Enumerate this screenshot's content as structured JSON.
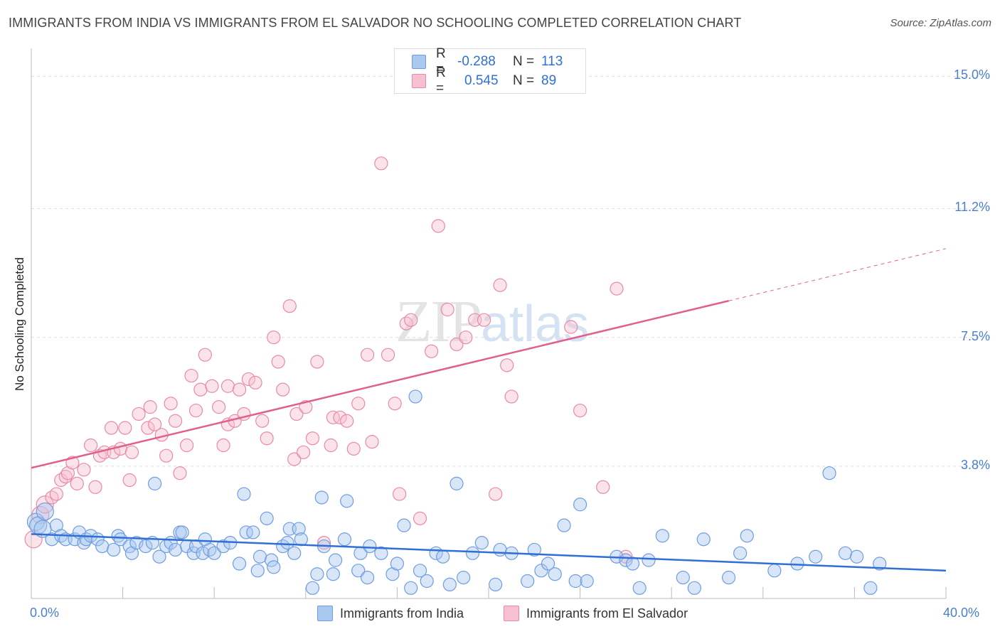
{
  "title": "IMMIGRANTS FROM INDIA VS IMMIGRANTS FROM EL SALVADOR NO SCHOOLING COMPLETED CORRELATION CHART",
  "source": "Source: ZipAtlas.com",
  "watermark": {
    "zip": "ZIP",
    "atlas": "atlas"
  },
  "legend": {
    "india": {
      "r_label": "R =",
      "r_value": "-0.288",
      "n_label": "N =",
      "n_value": "113"
    },
    "elsalvador": {
      "r_label": "R =",
      "r_value": "0.545",
      "n_label": "N =",
      "n_value": "89"
    }
  },
  "colors": {
    "india_fill": "#a9c8f0",
    "india_stroke": "#6f9de0",
    "india_line": "#2f6fd6",
    "elsalvador_fill": "#f6c0d0",
    "elsalvador_stroke": "#e88aa8",
    "elsalvador_line": "#e0608a",
    "value_text": "#2f6fd6",
    "grid": "#dddddd"
  },
  "chart_data": {
    "type": "scatter",
    "xlabel": "",
    "ylabel": "No Schooling Completed",
    "xlim": [
      0,
      40
    ],
    "ylim": [
      0,
      15.6
    ],
    "x_tick_labels": [
      {
        "value": 0,
        "label": "0.0%"
      },
      {
        "value": 40,
        "label": "40.0%"
      }
    ],
    "y_tick_labels": [
      {
        "value": 3.8,
        "label": "3.8%"
      },
      {
        "value": 7.5,
        "label": "7.5%"
      },
      {
        "value": 11.2,
        "label": "11.2%"
      },
      {
        "value": 15.0,
        "label": "15.0%"
      }
    ],
    "grid": true,
    "legend_position": "bottom",
    "series": [
      {
        "name": "Immigrants from India",
        "trend": {
          "x0": 0,
          "y0": 1.85,
          "x1": 40,
          "y1": 0.8
        },
        "points": [
          [
            0.2,
            2.2
          ],
          [
            0.3,
            2.1
          ],
          [
            0.5,
            2.0
          ],
          [
            0.6,
            2.5
          ],
          [
            0.9,
            1.7
          ],
          [
            1.1,
            2.1
          ],
          [
            1.3,
            1.8
          ],
          [
            1.5,
            1.7
          ],
          [
            1.9,
            1.7
          ],
          [
            2.1,
            1.9
          ],
          [
            2.3,
            1.6
          ],
          [
            2.4,
            1.7
          ],
          [
            2.6,
            1.8
          ],
          [
            2.9,
            1.7
          ],
          [
            3.1,
            1.5
          ],
          [
            3.6,
            1.4
          ],
          [
            3.8,
            1.8
          ],
          [
            3.9,
            1.7
          ],
          [
            4.3,
            1.5
          ],
          [
            4.4,
            1.3
          ],
          [
            4.6,
            1.6
          ],
          [
            5.0,
            1.5
          ],
          [
            5.3,
            1.6
          ],
          [
            5.4,
            3.3
          ],
          [
            5.6,
            1.2
          ],
          [
            5.9,
            1.5
          ],
          [
            6.1,
            1.6
          ],
          [
            6.3,
            1.4
          ],
          [
            6.5,
            1.9
          ],
          [
            6.6,
            1.9
          ],
          [
            6.8,
            1.5
          ],
          [
            7.1,
            1.3
          ],
          [
            7.2,
            1.5
          ],
          [
            7.5,
            1.3
          ],
          [
            7.6,
            1.7
          ],
          [
            7.8,
            1.4
          ],
          [
            8.0,
            1.3
          ],
          [
            8.4,
            1.5
          ],
          [
            8.7,
            1.6
          ],
          [
            9.1,
            1.0
          ],
          [
            9.3,
            3.0
          ],
          [
            9.4,
            1.9
          ],
          [
            9.7,
            1.9
          ],
          [
            9.9,
            0.8
          ],
          [
            10.0,
            1.2
          ],
          [
            10.3,
            2.3
          ],
          [
            10.5,
            1.1
          ],
          [
            10.6,
            0.9
          ],
          [
            11.0,
            1.5
          ],
          [
            11.2,
            1.6
          ],
          [
            11.3,
            2.0
          ],
          [
            11.5,
            1.3
          ],
          [
            11.7,
            2.0
          ],
          [
            11.8,
            1.7
          ],
          [
            12.3,
            0.3
          ],
          [
            12.5,
            0.7
          ],
          [
            12.7,
            2.9
          ],
          [
            12.8,
            1.5
          ],
          [
            13.2,
            0.7
          ],
          [
            13.3,
            1.1
          ],
          [
            13.7,
            1.7
          ],
          [
            13.8,
            2.8
          ],
          [
            14.3,
            0.8
          ],
          [
            14.4,
            1.3
          ],
          [
            14.7,
            0.6
          ],
          [
            14.8,
            1.5
          ],
          [
            15.3,
            1.3
          ],
          [
            15.8,
            0.7
          ],
          [
            16.0,
            1.0
          ],
          [
            16.3,
            2.1
          ],
          [
            16.6,
            0.3
          ],
          [
            16.8,
            5.8
          ],
          [
            17.0,
            0.8
          ],
          [
            17.3,
            0.5
          ],
          [
            17.7,
            1.3
          ],
          [
            18.0,
            1.2
          ],
          [
            18.3,
            0.4
          ],
          [
            18.6,
            3.3
          ],
          [
            18.9,
            0.6
          ],
          [
            19.3,
            1.3
          ],
          [
            19.7,
            1.6
          ],
          [
            20.3,
            0.4
          ],
          [
            20.5,
            1.4
          ],
          [
            21.0,
            1.3
          ],
          [
            21.7,
            0.5
          ],
          [
            22.0,
            1.4
          ],
          [
            22.3,
            0.8
          ],
          [
            22.6,
            1.0
          ],
          [
            22.9,
            0.7
          ],
          [
            23.3,
            2.1
          ],
          [
            23.8,
            0.5
          ],
          [
            24.0,
            2.7
          ],
          [
            24.3,
            0.5
          ],
          [
            25.6,
            1.2
          ],
          [
            26.0,
            1.1
          ],
          [
            26.3,
            1.0
          ],
          [
            26.6,
            0.3
          ],
          [
            27.0,
            1.1
          ],
          [
            27.6,
            1.8
          ],
          [
            28.5,
            0.6
          ],
          [
            29.0,
            0.3
          ],
          [
            29.4,
            1.7
          ],
          [
            30.5,
            0.6
          ],
          [
            31.0,
            1.3
          ],
          [
            31.3,
            1.8
          ],
          [
            32.5,
            0.8
          ],
          [
            33.5,
            1.0
          ],
          [
            34.3,
            1.2
          ],
          [
            34.9,
            3.6
          ],
          [
            35.6,
            1.3
          ],
          [
            36.1,
            1.2
          ],
          [
            36.7,
            0.3
          ],
          [
            37.1,
            1.0
          ]
        ]
      },
      {
        "name": "Immigrants from El Salvador",
        "trend": {
          "x0": 0,
          "y0": 3.75,
          "x1": 30.5,
          "y1": 8.55,
          "dashed_to": {
            "x": 40,
            "y": 10.05
          }
        },
        "points": [
          [
            0.1,
            1.7
          ],
          [
            0.4,
            2.4
          ],
          [
            0.6,
            2.7
          ],
          [
            0.9,
            2.9
          ],
          [
            1.1,
            3.0
          ],
          [
            1.3,
            3.4
          ],
          [
            1.5,
            3.5
          ],
          [
            1.6,
            3.6
          ],
          [
            1.8,
            3.9
          ],
          [
            2.0,
            3.3
          ],
          [
            2.3,
            3.7
          ],
          [
            2.6,
            4.4
          ],
          [
            2.8,
            3.2
          ],
          [
            3.0,
            4.1
          ],
          [
            3.2,
            4.2
          ],
          [
            3.5,
            4.9
          ],
          [
            3.6,
            4.2
          ],
          [
            3.9,
            4.3
          ],
          [
            4.1,
            4.9
          ],
          [
            4.3,
            3.4
          ],
          [
            4.4,
            4.2
          ],
          [
            4.7,
            5.3
          ],
          [
            5.1,
            4.9
          ],
          [
            5.2,
            5.5
          ],
          [
            5.4,
            5.0
          ],
          [
            5.7,
            4.7
          ],
          [
            5.9,
            4.1
          ],
          [
            6.1,
            5.6
          ],
          [
            6.3,
            5.1
          ],
          [
            6.5,
            3.6
          ],
          [
            6.8,
            4.4
          ],
          [
            7.0,
            6.4
          ],
          [
            7.2,
            5.4
          ],
          [
            7.4,
            6.0
          ],
          [
            7.6,
            7.0
          ],
          [
            7.9,
            6.1
          ],
          [
            8.2,
            5.5
          ],
          [
            8.4,
            4.4
          ],
          [
            8.6,
            5.0
          ],
          [
            8.9,
            5.1
          ],
          [
            8.6,
            6.1
          ],
          [
            9.1,
            6.0
          ],
          [
            9.3,
            5.3
          ],
          [
            9.5,
            6.3
          ],
          [
            9.8,
            6.2
          ],
          [
            10.1,
            5.1
          ],
          [
            10.3,
            4.6
          ],
          [
            10.6,
            7.5
          ],
          [
            10.8,
            6.8
          ],
          [
            11.0,
            6.0
          ],
          [
            11.3,
            8.4
          ],
          [
            11.5,
            4.0
          ],
          [
            11.6,
            5.3
          ],
          [
            11.9,
            4.2
          ],
          [
            12.0,
            5.5
          ],
          [
            12.3,
            4.6
          ],
          [
            12.5,
            6.8
          ],
          [
            12.8,
            1.6
          ],
          [
            13.1,
            4.4
          ],
          [
            13.2,
            5.2
          ],
          [
            13.5,
            5.2
          ],
          [
            13.8,
            5.1
          ],
          [
            14.1,
            4.3
          ],
          [
            14.3,
            5.6
          ],
          [
            14.7,
            7.0
          ],
          [
            14.9,
            4.5
          ],
          [
            15.3,
            12.5
          ],
          [
            15.6,
            7.0
          ],
          [
            15.9,
            5.6
          ],
          [
            16.1,
            3.0
          ],
          [
            16.4,
            7.9
          ],
          [
            16.6,
            8.0
          ],
          [
            17.0,
            2.3
          ],
          [
            17.8,
            10.7
          ],
          [
            17.5,
            7.1
          ],
          [
            18.2,
            8.3
          ],
          [
            18.6,
            7.3
          ],
          [
            19.0,
            7.5
          ],
          [
            19.4,
            8.0
          ],
          [
            19.8,
            8.0
          ],
          [
            20.3,
            3.0
          ],
          [
            20.5,
            9.0
          ],
          [
            20.8,
            6.7
          ],
          [
            21.0,
            5.8
          ],
          [
            23.6,
            7.8
          ],
          [
            24.0,
            5.4
          ],
          [
            25.0,
            3.2
          ],
          [
            25.6,
            8.9
          ],
          [
            26.0,
            1.2
          ]
        ]
      }
    ]
  }
}
